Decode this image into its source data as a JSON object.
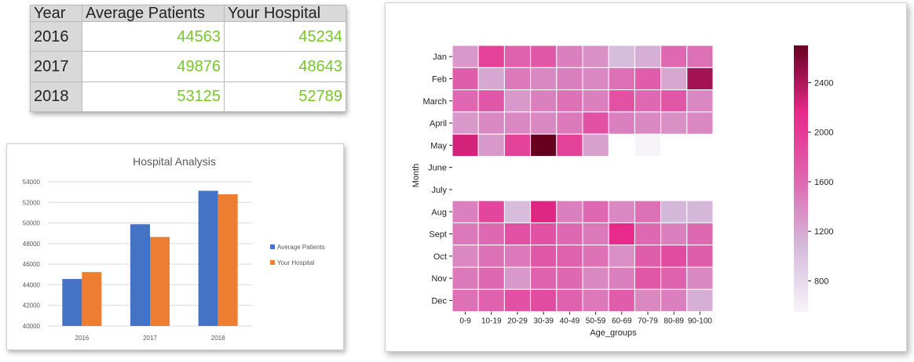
{
  "table": {
    "headers": [
      "Year",
      "Average Patients",
      "Your Hospital"
    ],
    "rows": [
      {
        "year": "2016",
        "avg": "44563",
        "yours": "45234"
      },
      {
        "year": "2017",
        "avg": "49876",
        "yours": "48643"
      },
      {
        "year": "2018",
        "avg": "53125",
        "yours": "52789"
      }
    ]
  },
  "chart_data": [
    {
      "type": "bar",
      "title": "Hospital Analysis",
      "categories": [
        "2016",
        "2017",
        "2018"
      ],
      "series": [
        {
          "name": "Average Patients",
          "values": [
            44563,
            49876,
            53125
          ],
          "color": "#4472c4"
        },
        {
          "name": "Your Hospital",
          "values": [
            45234,
            48643,
            52789
          ],
          "color": "#ed7d31"
        }
      ],
      "ylim": [
        40000,
        54000
      ],
      "yticks": [
        "40000",
        "42000",
        "44000",
        "46000",
        "48000",
        "50000",
        "52000",
        "54000"
      ],
      "grid": true,
      "legend": "right"
    },
    {
      "type": "heatmap",
      "xlabel": "Age_groups",
      "ylabel": "Month",
      "x": [
        "0-9",
        "10-19",
        "20-29",
        "30-39",
        "40-49",
        "50-59",
        "60-69",
        "70-79",
        "80-89",
        "90-100"
      ],
      "y": [
        "Jan",
        "Feb",
        "March",
        "April",
        "May",
        "June",
        "July",
        "Aug",
        "Sept",
        "Oct",
        "Nov",
        "Dec"
      ],
      "values": [
        [
          1300,
          1950,
          1650,
          1750,
          1450,
          1350,
          1050,
          1150,
          1600,
          1550
        ],
        [
          1700,
          1200,
          1500,
          1400,
          1450,
          1400,
          1550,
          1700,
          1200,
          2450
        ],
        [
          1600,
          1750,
          1300,
          1450,
          1550,
          1450,
          1800,
          1600,
          1750,
          1400
        ],
        [
          1300,
          1400,
          1400,
          1400,
          1500,
          1800,
          1450,
          1400,
          1350,
          1400
        ],
        [
          2250,
          1300,
          1950,
          2700,
          1950,
          1250,
          null,
          550,
          null,
          null
        ],
        [
          null,
          null,
          null,
          null,
          null,
          null,
          null,
          null,
          null,
          null
        ],
        [
          null,
          null,
          null,
          null,
          null,
          null,
          null,
          null,
          null,
          null
        ],
        [
          1450,
          1900,
          1050,
          2200,
          1450,
          1600,
          1400,
          1550,
          1100,
          1100
        ],
        [
          1500,
          1600,
          1800,
          1800,
          1600,
          1500,
          2150,
          1600,
          1450,
          1600
        ],
        [
          1400,
          1550,
          1500,
          1750,
          1650,
          1550,
          1350,
          1700,
          1850,
          1700
        ],
        [
          1500,
          1600,
          1300,
          1650,
          1600,
          1400,
          1450,
          1750,
          1650,
          1400
        ],
        [
          1550,
          1650,
          1800,
          1850,
          1650,
          1500,
          1700,
          1400,
          1450,
          1150
        ]
      ],
      "colorbar": {
        "min": 550,
        "max": 2700,
        "ticks": [
          "800",
          "1200",
          "1600",
          "2000",
          "2400"
        ]
      }
    }
  ]
}
